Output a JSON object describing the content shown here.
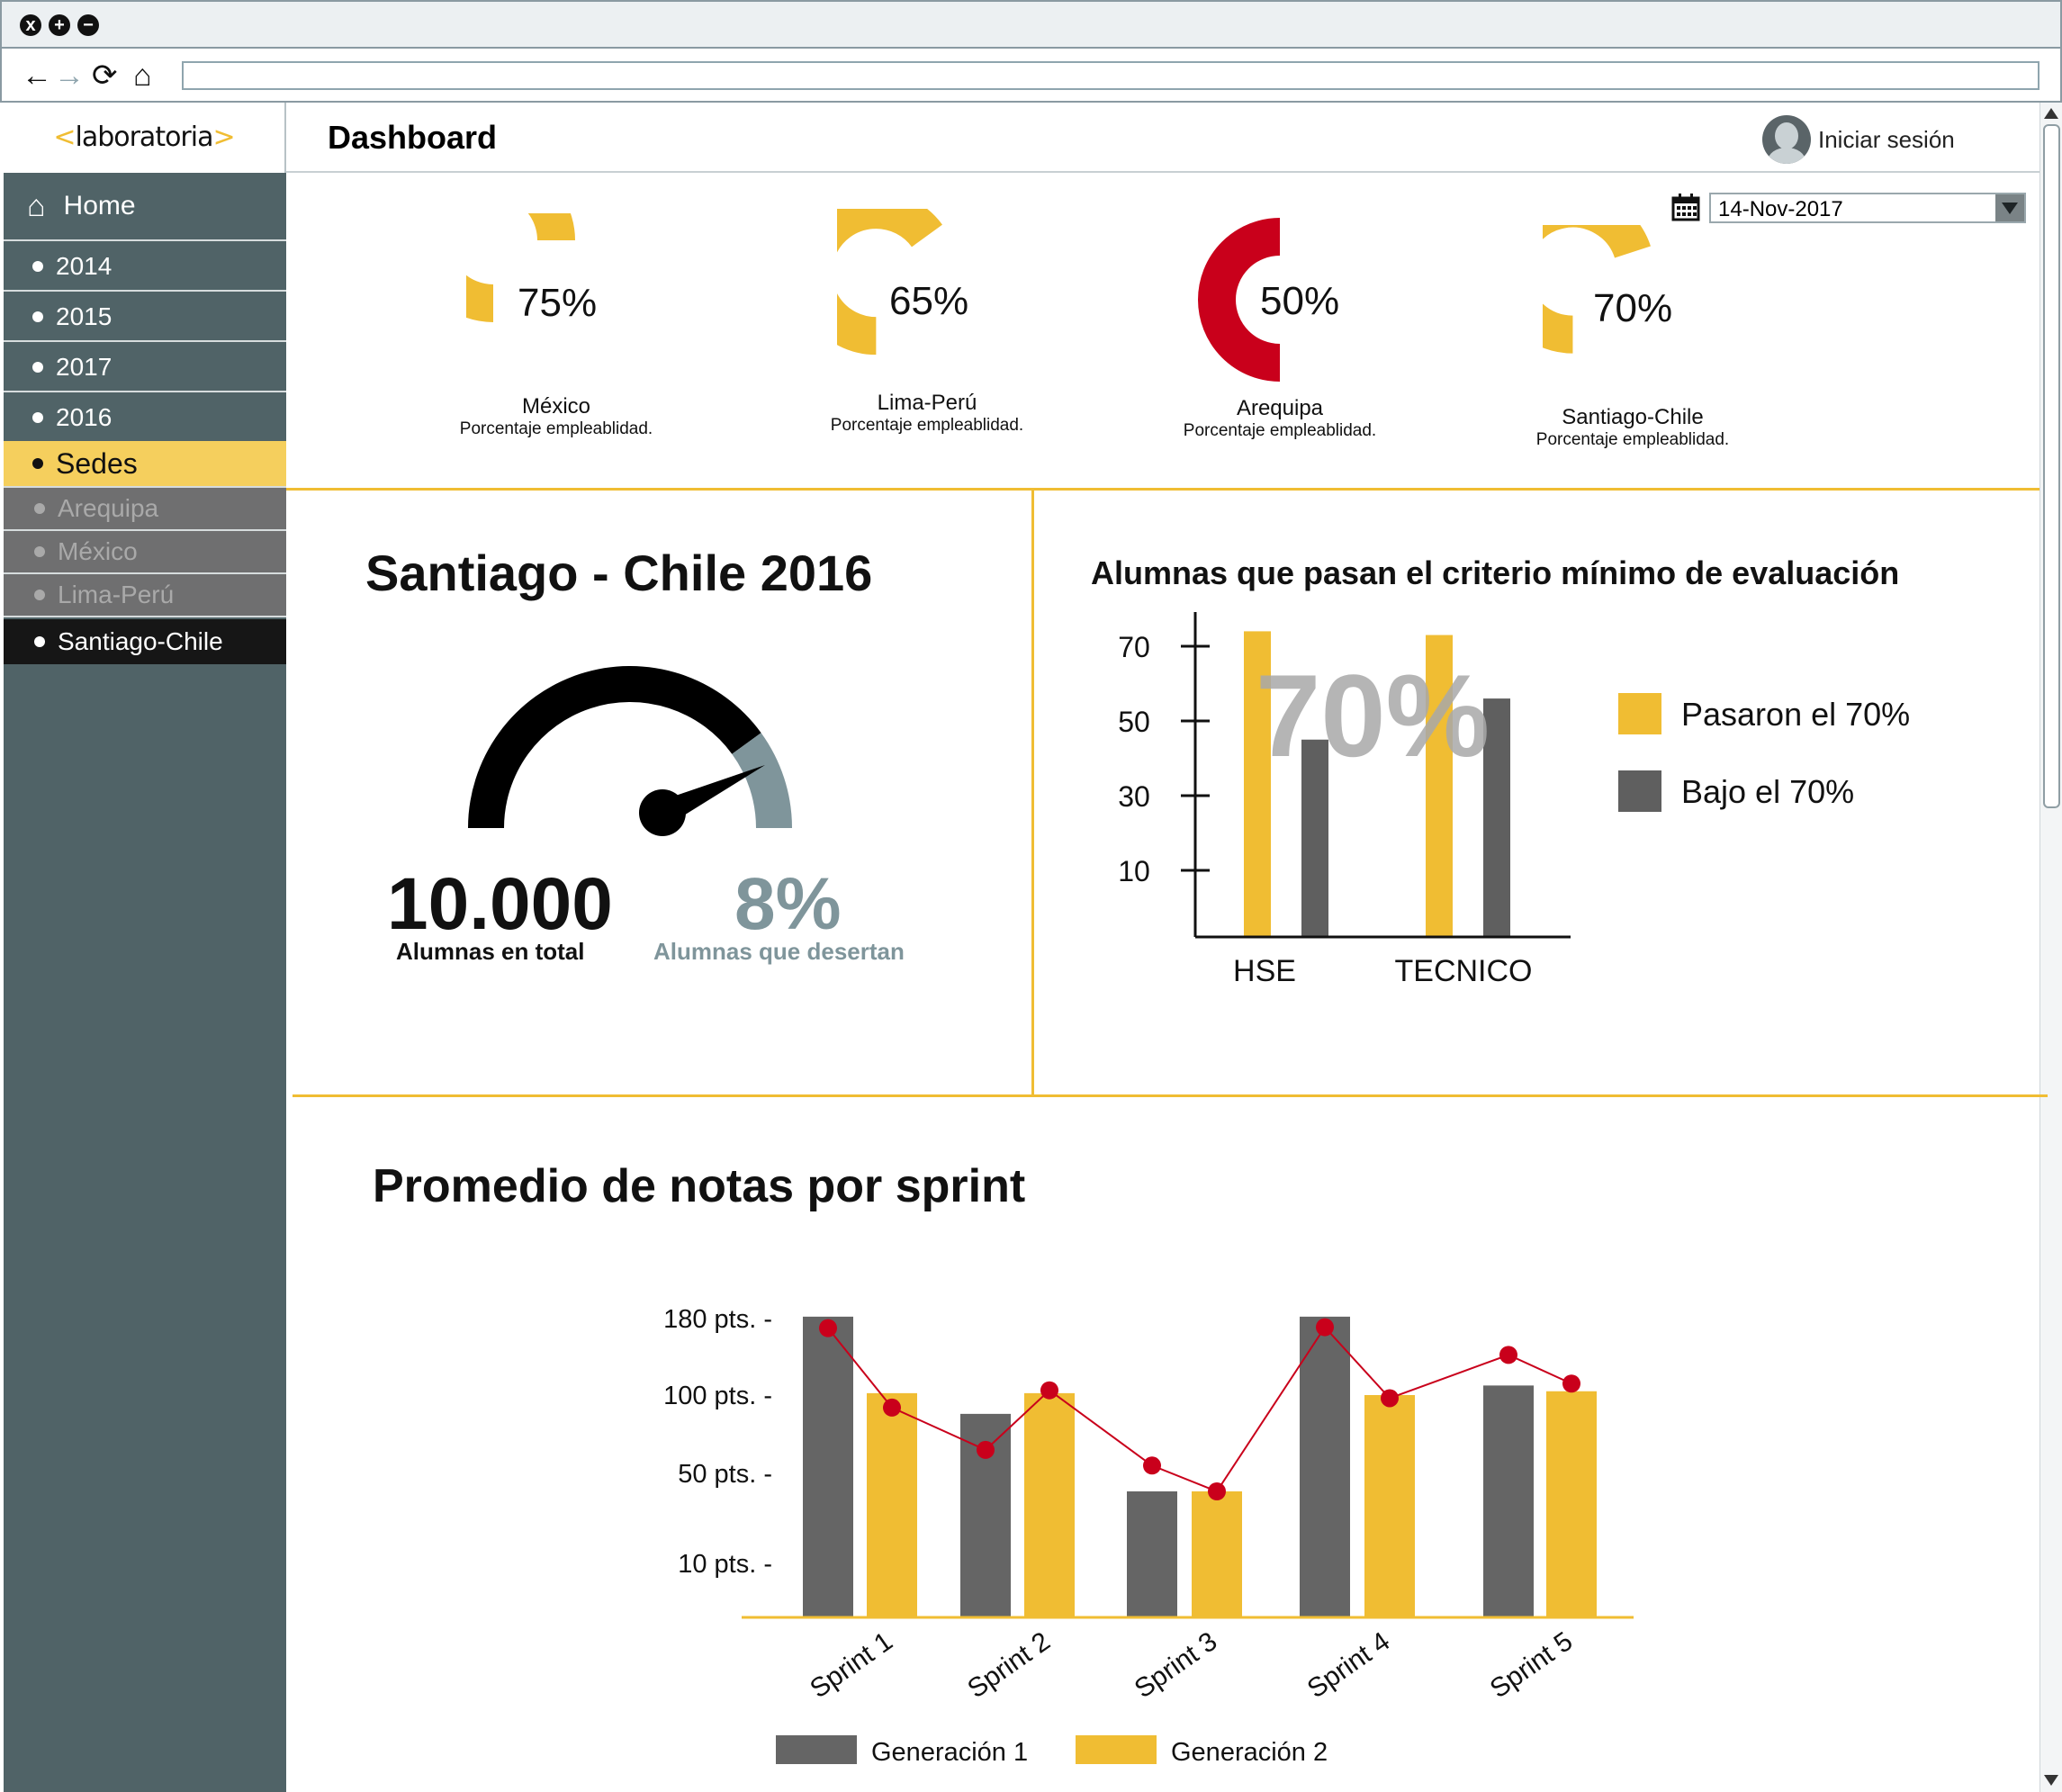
{
  "window": {
    "controls": [
      "x",
      "+",
      "−"
    ]
  },
  "browser": {
    "nav_icons": [
      "arrow-left-icon",
      "arrow-right-icon",
      "reload-icon",
      "home-icon"
    ],
    "url": ""
  },
  "brand": {
    "left": "<",
    "name": "laboratoria",
    "right": ">"
  },
  "header": {
    "title": "Dashboard",
    "login_label": "Iniciar sesión"
  },
  "sidebar": {
    "home_label": "Home",
    "years": [
      "2014",
      "2015",
      "2017",
      "2016"
    ],
    "sedes_label": "Sedes",
    "sedes": [
      "Arequipa",
      "México",
      "Lima-Perú",
      "Santiago-Chile"
    ],
    "active_sede": "Santiago-Chile"
  },
  "date_picker": {
    "value": "14-Nov-2017"
  },
  "kpis": [
    {
      "city": "México",
      "caption": "Porcentaje empleablidad.",
      "value_label": "75%",
      "fraction": 0.75,
      "color": "#f0bd33"
    },
    {
      "city": "Lima-Perú",
      "caption": "Porcentaje empleablidad.",
      "value_label": "65%",
      "fraction": 0.65,
      "color": "#f0bd33"
    },
    {
      "city": "Arequipa",
      "caption": "Porcentaje empleablidad.",
      "value_label": "50%",
      "fraction": 0.5,
      "color": "#c9001b"
    },
    {
      "city": "Santiago-Chile",
      "caption": "Porcentaje empleablidad.",
      "value_label": "70%",
      "fraction": 0.7,
      "color": "#f0bd33"
    }
  ],
  "summary": {
    "title": "Santiago - Chile 2016",
    "total_value": "10.000",
    "total_label": "Alumnas en total",
    "dropout_value": "8%",
    "dropout_label": "Alumnas que desertan",
    "gauge_fraction": 0.8,
    "colors": {
      "main": "#000000",
      "rest": "#7f959b"
    }
  },
  "chart_data": [
    {
      "type": "bar",
      "title": "Alumnas que pasan el criterio mínimo de evaluación",
      "categories": [
        "HSE",
        "TECNICO"
      ],
      "yticks": [
        70,
        50,
        30,
        10
      ],
      "ylim": [
        0,
        80
      ],
      "watermark": "70%",
      "series": [
        {
          "name": "Pasaron el 70%",
          "values": [
            74,
            73
          ],
          "color": "#f0bd33"
        },
        {
          "name": "Bajo el 70%",
          "values": [
            45,
            56
          ],
          "color": "#5f5f5f"
        }
      ],
      "legend": "right"
    },
    {
      "type": "bar",
      "title": "Promedio de notas por sprint",
      "categories": [
        "Sprint 1",
        "Sprint 2",
        "Sprint 3",
        "Sprint 4",
        "Sprint 5"
      ],
      "ytick_labels": [
        "180 pts. -",
        "100 pts. -",
        "50 pts. -",
        "10 pts. -"
      ],
      "ytick_values": [
        180,
        100,
        50,
        10
      ],
      "series": [
        {
          "name": "Generación 1",
          "values": [
            182,
            88,
            42,
            182,
            110
          ],
          "color": "#656565"
        },
        {
          "name": "Generación 2",
          "values": [
            102,
            102,
            42,
            100,
            104
          ],
          "color": "#f0bd33"
        }
      ],
      "line_points": [
        170,
        92,
        65,
        105,
        55,
        42,
        171,
        98,
        142,
        112
      ],
      "line_color": "#c9001b",
      "legend": "bottom"
    }
  ]
}
